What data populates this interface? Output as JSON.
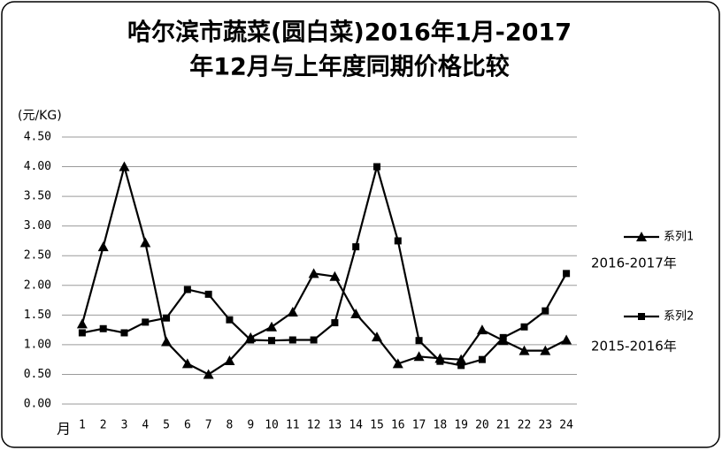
{
  "chart_data": {
    "type": "line",
    "title": [
      "哈尔滨市蔬菜(圆白菜)2016年1月-2017",
      "年12月与上年度同期价格比较"
    ],
    "y_label": "(元/KG)",
    "x_label": "月",
    "categories": [
      "1",
      "2",
      "3",
      "4",
      "5",
      "6",
      "7",
      "8",
      "9",
      "10",
      "11",
      "12",
      "13",
      "14",
      "15",
      "16",
      "17",
      "18",
      "19",
      "20",
      "21",
      "22",
      "23",
      "24"
    ],
    "series": [
      {
        "name": "系列1",
        "marker": "triangle",
        "color": "#000000",
        "values": [
          1.35,
          2.65,
          4.0,
          2.72,
          1.05,
          0.68,
          0.5,
          0.73,
          1.12,
          1.3,
          1.55,
          2.2,
          2.15,
          1.52,
          1.13,
          0.68,
          0.8,
          0.77,
          0.75,
          1.25,
          1.07,
          0.9,
          0.9,
          1.08
        ]
      },
      {
        "name": "系列2",
        "marker": "square",
        "color": "#000000",
        "values": [
          1.2,
          1.27,
          1.2,
          1.38,
          1.45,
          1.93,
          1.85,
          1.42,
          1.08,
          1.07,
          1.08,
          1.08,
          1.37,
          2.65,
          4.0,
          2.75,
          1.07,
          0.72,
          0.65,
          0.75,
          1.12,
          1.3,
          1.57,
          2.2
        ]
      }
    ],
    "annotations": [
      "2016-2017年",
      "2015-2016年"
    ],
    "ylim": [
      0,
      4.5
    ],
    "yticks": [
      {
        "value": 0,
        "label": "0.00"
      },
      {
        "value": 0.5,
        "label": "0.50"
      },
      {
        "value": 1,
        "label": "1.00"
      },
      {
        "value": 1.5,
        "label": "1.50"
      },
      {
        "value": 2,
        "label": "2.00"
      },
      {
        "value": 2.5,
        "label": "2.50"
      },
      {
        "value": 3,
        "label": "3.00"
      },
      {
        "value": 3.5,
        "label": "3.50"
      },
      {
        "value": 4,
        "label": "4.00"
      },
      {
        "value": 4.5,
        "label": "4.50"
      }
    ],
    "grid": true,
    "legend": "right"
  }
}
